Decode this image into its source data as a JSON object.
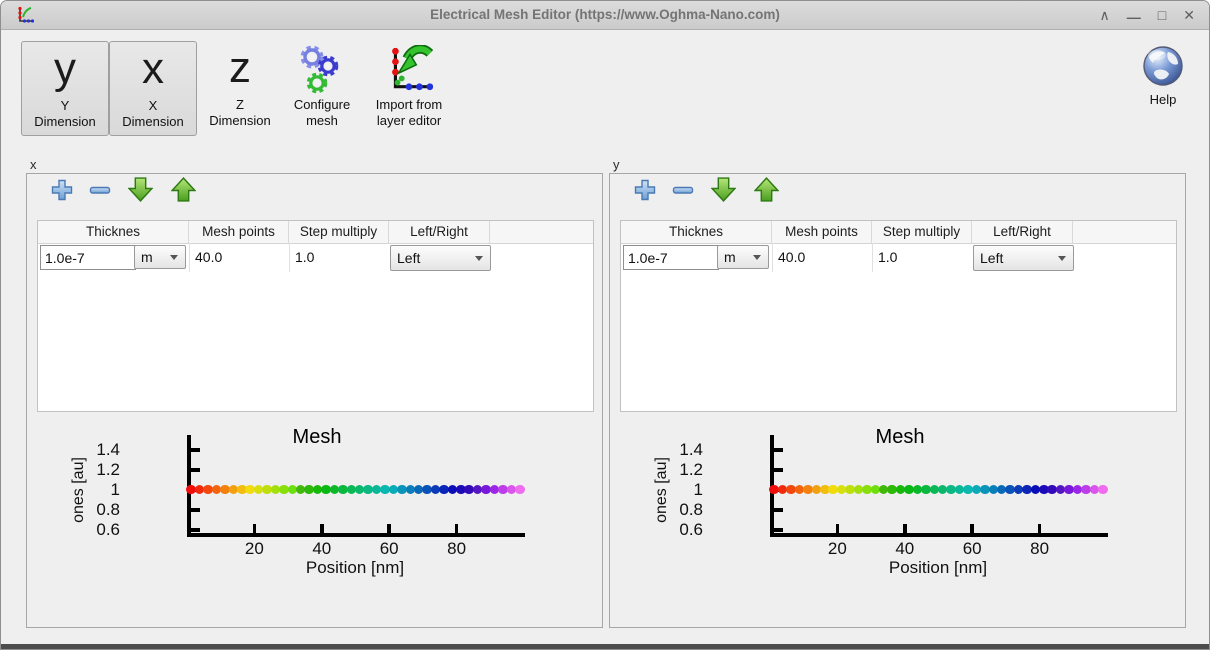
{
  "window": {
    "title": "Electrical Mesh Editor (https://www.Oghma-Nano.com)",
    "controls": {
      "collapse": "∧",
      "minimize": "—",
      "maximize": "□",
      "close": "✕"
    }
  },
  "toolbar": {
    "y_dimension": {
      "glyph": "y",
      "label": "Y\nDimension",
      "checked": true
    },
    "x_dimension": {
      "glyph": "x",
      "label": "X\nDimension",
      "checked": true
    },
    "z_dimension": {
      "glyph": "z",
      "label": "Z\nDimension",
      "checked": false
    },
    "configure_mesh": {
      "label": "Configure\nmesh"
    },
    "import_from_layer_editor": {
      "label": "Import from\nlayer editor"
    },
    "help": {
      "label": "Help"
    }
  },
  "panels": [
    {
      "label": "x",
      "table": {
        "columns": [
          "Thicknes",
          "Mesh points",
          "Step multiply",
          "Left/Right"
        ],
        "row": {
          "thickness": "1.0e-7",
          "unit": "m",
          "mesh_points": "40.0",
          "step_multiply": "1.0",
          "side": "Left"
        }
      }
    },
    {
      "label": "y",
      "table": {
        "columns": [
          "Thicknes",
          "Mesh points",
          "Step multiply",
          "Left/Right"
        ],
        "row": {
          "thickness": "1.0e-7",
          "unit": "m",
          "mesh_points": "40.0",
          "step_multiply": "1.0",
          "side": "Left"
        }
      }
    }
  ],
  "chart_data": [
    {
      "type": "scatter",
      "panel": "x",
      "title": "Mesh",
      "xlabel": "Position [nm]",
      "ylabel": "ones [au]",
      "xlim": [
        0,
        100
      ],
      "ylim": [
        0.5,
        1.5
      ],
      "grid": false,
      "legend": "none",
      "xticks": [
        {
          "v": 20,
          "label": "20"
        },
        {
          "v": 40,
          "label": "40"
        },
        {
          "v": 60,
          "label": "60"
        },
        {
          "v": 80,
          "label": "80"
        }
      ],
      "yticks": [
        {
          "v": 1.4,
          "label": "1.4"
        },
        {
          "v": 1.2,
          "label": "1.2"
        },
        {
          "v": 1,
          "label": "1"
        },
        {
          "v": 0.8,
          "label": "0.8"
        },
        {
          "v": 0.6,
          "label": "0.6"
        }
      ],
      "n_points": 40,
      "y_value": 1,
      "x": [
        1.25,
        3.75,
        6.25,
        8.75,
        11.25,
        13.75,
        16.25,
        18.75,
        21.25,
        23.75,
        26.25,
        28.75,
        31.25,
        33.75,
        36.25,
        38.75,
        41.25,
        43.75,
        46.25,
        48.75,
        51.25,
        53.75,
        56.25,
        58.75,
        61.25,
        63.75,
        66.25,
        68.75,
        71.25,
        73.75,
        76.25,
        78.75,
        81.25,
        83.75,
        86.25,
        88.75,
        91.25,
        93.75,
        96.25,
        98.75
      ],
      "point_color_scheme": {
        "type": "rainbow",
        "start": "red",
        "end": "violet",
        "hue_start": 0,
        "hue_end": 300
      }
    },
    {
      "type": "scatter",
      "panel": "y",
      "title": "Mesh",
      "xlabel": "Position [nm]",
      "ylabel": "ones [au]",
      "xlim": [
        0,
        100
      ],
      "ylim": [
        0.5,
        1.5
      ],
      "grid": false,
      "legend": "none",
      "xticks": [
        {
          "v": 20,
          "label": "20"
        },
        {
          "v": 40,
          "label": "40"
        },
        {
          "v": 60,
          "label": "60"
        },
        {
          "v": 80,
          "label": "80"
        }
      ],
      "yticks": [
        {
          "v": 1.4,
          "label": "1.4"
        },
        {
          "v": 1.2,
          "label": "1.2"
        },
        {
          "v": 1,
          "label": "1"
        },
        {
          "v": 0.8,
          "label": "0.8"
        },
        {
          "v": 0.6,
          "label": "0.6"
        }
      ],
      "n_points": 40,
      "y_value": 1,
      "x": [
        1.25,
        3.75,
        6.25,
        8.75,
        11.25,
        13.75,
        16.25,
        18.75,
        21.25,
        23.75,
        26.25,
        28.75,
        31.25,
        33.75,
        36.25,
        38.75,
        41.25,
        43.75,
        46.25,
        48.75,
        51.25,
        53.75,
        56.25,
        58.75,
        61.25,
        63.75,
        66.25,
        68.75,
        71.25,
        73.75,
        76.25,
        78.75,
        81.25,
        83.75,
        86.25,
        88.75,
        91.25,
        93.75,
        96.25,
        98.75
      ],
      "point_color_scheme": {
        "type": "rainbow",
        "start": "red",
        "end": "violet",
        "hue_start": 0,
        "hue_end": 300
      }
    }
  ],
  "colors": {
    "window_bg": "#efeff0",
    "titlebar_bg": "#d5d5d5",
    "accent_blue_icon": "#6d9fd4",
    "accent_green_icon": "#4a9e1e",
    "axis_black": "#000000"
  }
}
